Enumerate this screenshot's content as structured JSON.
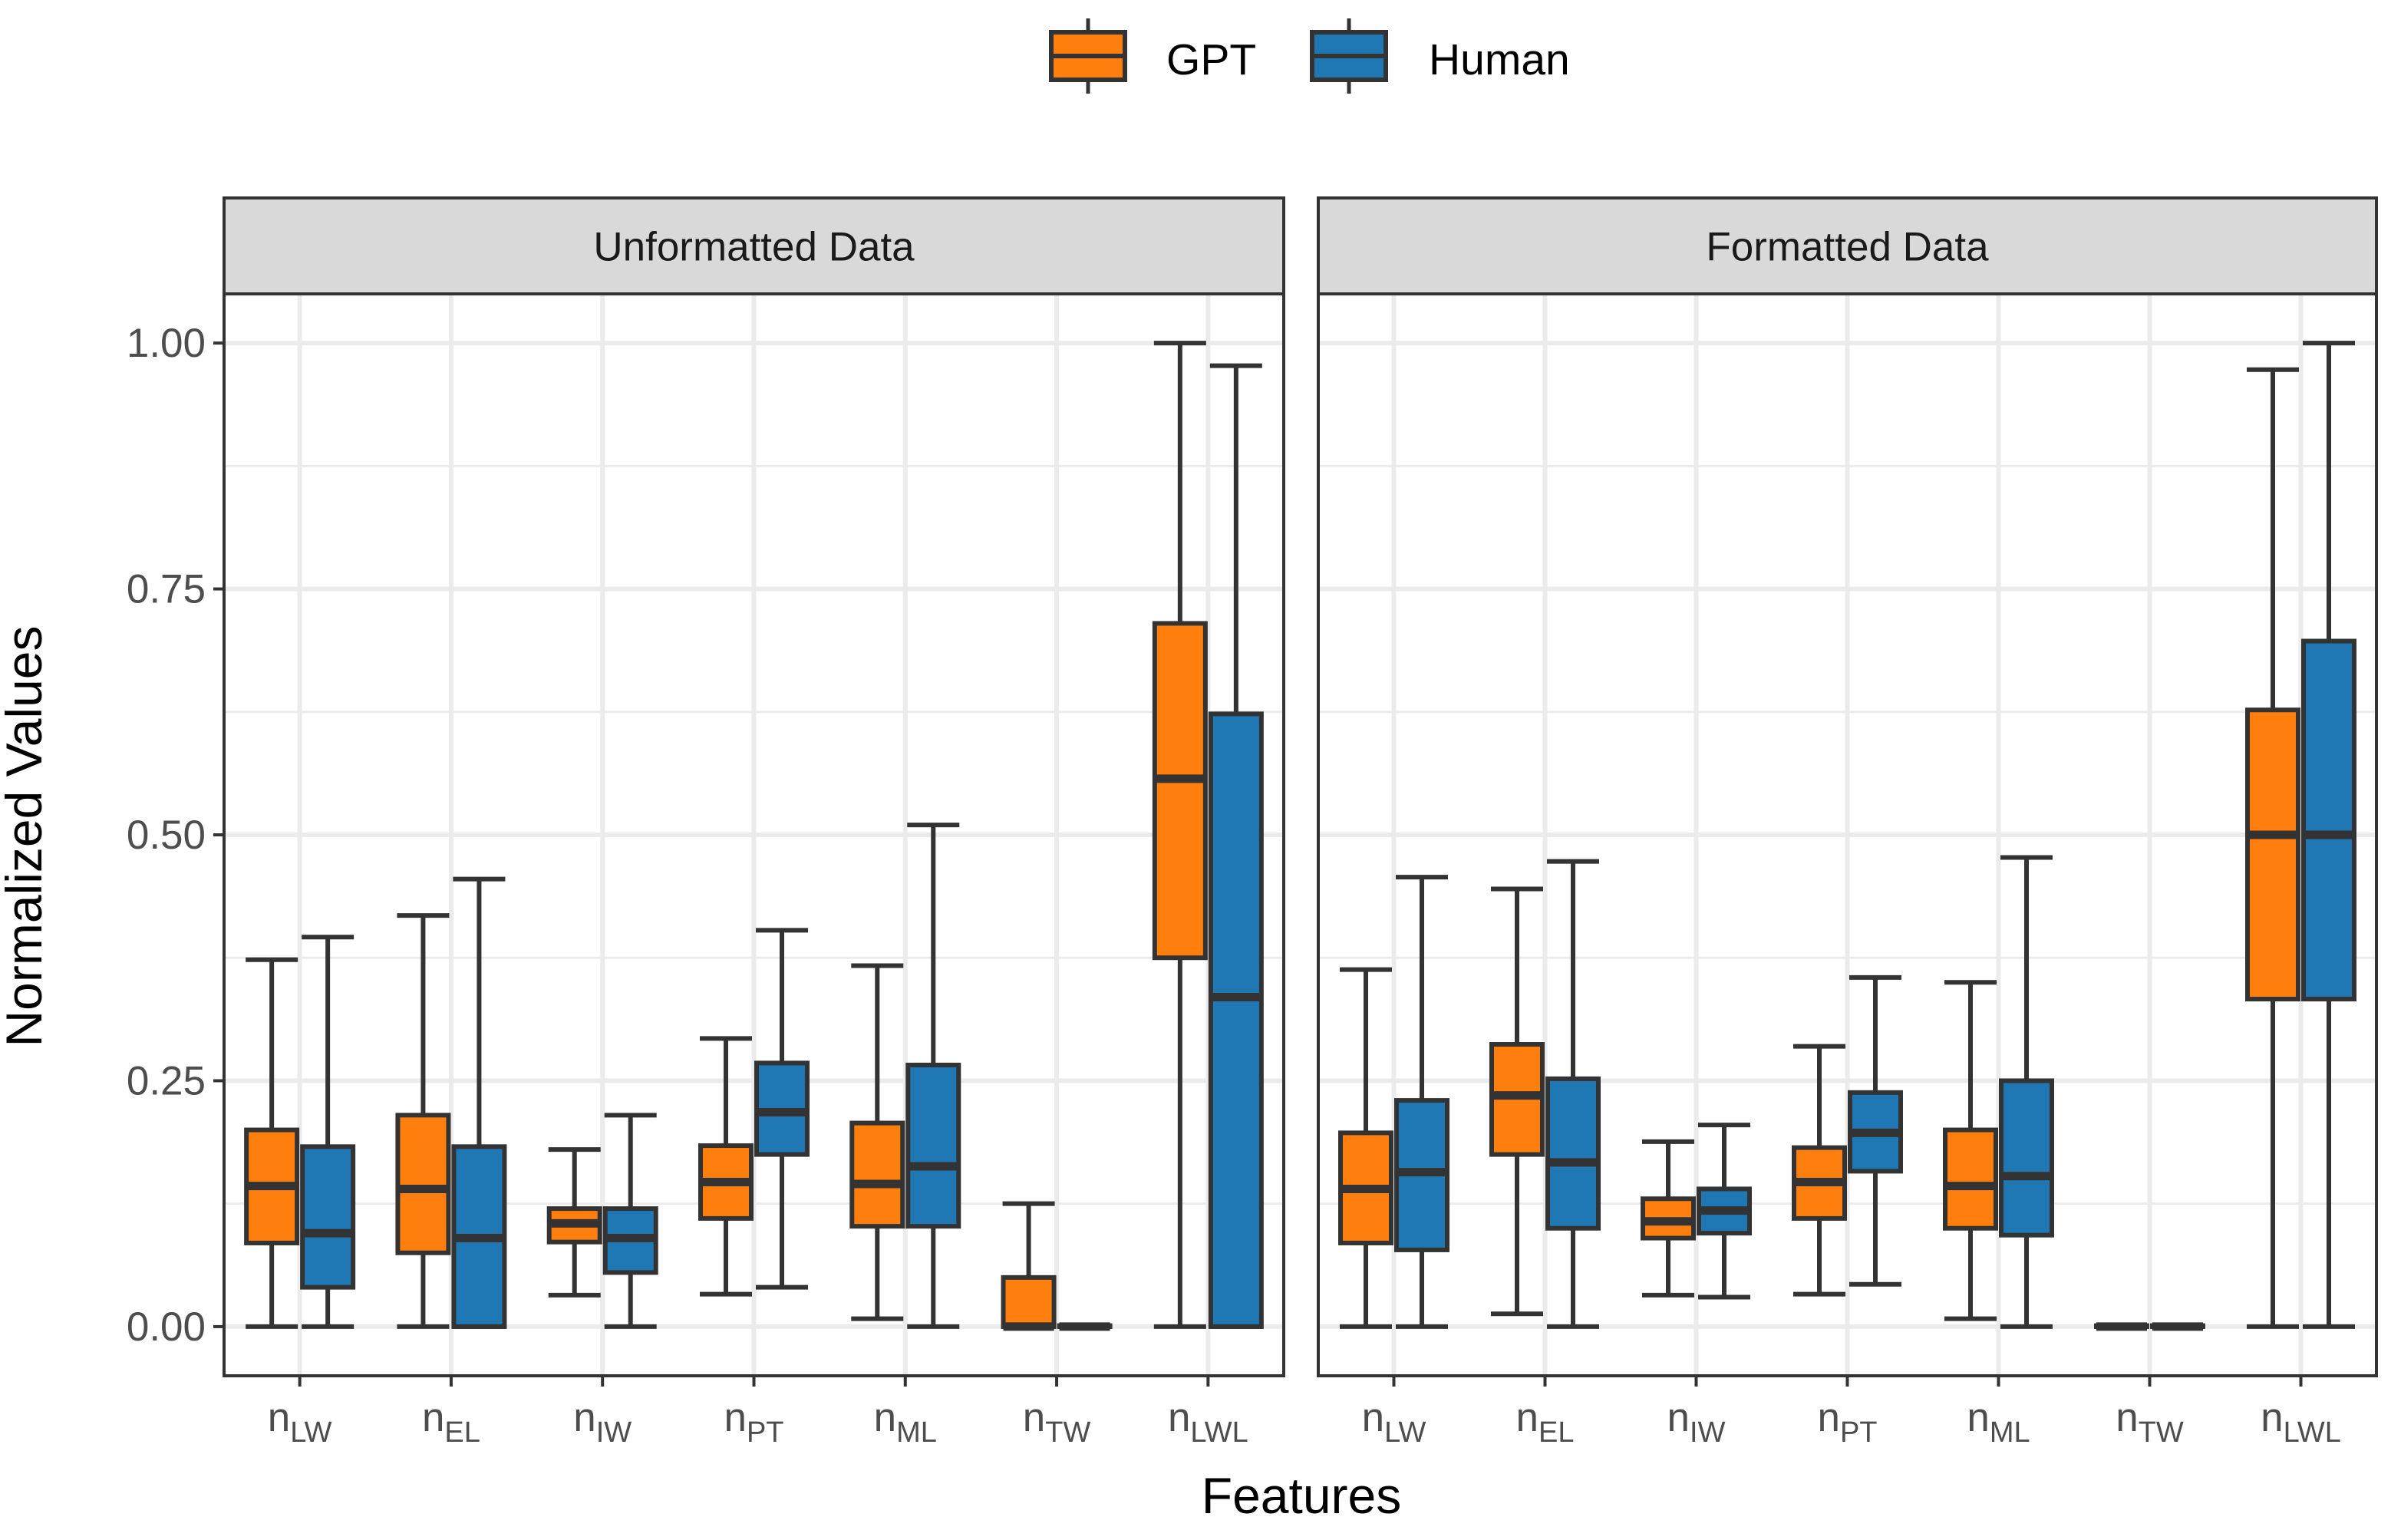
{
  "chart_data": {
    "type": "boxplot",
    "xlabel": "Features",
    "ylabel": "Normalized Values",
    "ylim": [
      -0.05,
      1.05
    ],
    "yticks": [
      0,
      0.25,
      0.5,
      0.75,
      1
    ],
    "ytick_labels": [
      "0.00",
      "0.25",
      "0.50",
      "0.75",
      "1.00"
    ],
    "legend": {
      "position": "top",
      "entries": [
        {
          "name": "GPT",
          "color": "#FF7F0E"
        },
        {
          "name": "Human",
          "color": "#1F77B4"
        }
      ]
    },
    "categories": [
      {
        "base": "n",
        "sub": "LW"
      },
      {
        "base": "n",
        "sub": "EL"
      },
      {
        "base": "n",
        "sub": "IW"
      },
      {
        "base": "n",
        "sub": "PT"
      },
      {
        "base": "n",
        "sub": "ML"
      },
      {
        "base": "n",
        "sub": "TW"
      },
      {
        "base": "n",
        "sub": "LWL"
      }
    ],
    "panels": [
      {
        "title": "Unformatted Data",
        "series": [
          {
            "name": "GPT",
            "boxes": [
              {
                "min": 0.0,
                "q1": 0.085,
                "median": 0.143,
                "q3": 0.2,
                "max": 0.373
              },
              {
                "min": 0.0,
                "q1": 0.075,
                "median": 0.14,
                "q3": 0.215,
                "max": 0.418
              },
              {
                "min": 0.032,
                "q1": 0.086,
                "median": 0.105,
                "q3": 0.12,
                "max": 0.18
              },
              {
                "min": 0.033,
                "q1": 0.11,
                "median": 0.147,
                "q3": 0.184,
                "max": 0.293
              },
              {
                "min": 0.008,
                "q1": 0.102,
                "median": 0.145,
                "q3": 0.207,
                "max": 0.367
              },
              {
                "min": 0.0,
                "q1": 0.0,
                "median": 0.0,
                "q3": 0.05,
                "max": 0.125
              },
              {
                "min": 0.0,
                "q1": 0.375,
                "median": 0.557,
                "q3": 0.715,
                "max": 1.0
              }
            ]
          },
          {
            "name": "Human",
            "boxes": [
              {
                "min": 0.0,
                "q1": 0.04,
                "median": 0.095,
                "q3": 0.183,
                "max": 0.396
              },
              {
                "min": 0.0,
                "q1": 0.0,
                "median": 0.09,
                "q3": 0.183,
                "max": 0.455
              },
              {
                "min": 0.0,
                "q1": 0.055,
                "median": 0.09,
                "q3": 0.12,
                "max": 0.215
              },
              {
                "min": 0.04,
                "q1": 0.175,
                "median": 0.218,
                "q3": 0.268,
                "max": 0.403
              },
              {
                "min": 0.0,
                "q1": 0.102,
                "median": 0.163,
                "q3": 0.266,
                "max": 0.51
              },
              {
                "min": 0.0,
                "q1": 0.0,
                "median": 0.0,
                "q3": 0.001,
                "max": 0.001
              },
              {
                "min": 0.0,
                "q1": 0.0,
                "median": 0.335,
                "q3": 0.623,
                "max": 0.977
              }
            ]
          }
        ]
      },
      {
        "title": "Formatted Data",
        "series": [
          {
            "name": "GPT",
            "boxes": [
              {
                "min": 0.0,
                "q1": 0.085,
                "median": 0.14,
                "q3": 0.197,
                "max": 0.363
              },
              {
                "min": 0.013,
                "q1": 0.175,
                "median": 0.235,
                "q3": 0.287,
                "max": 0.445
              },
              {
                "min": 0.032,
                "q1": 0.09,
                "median": 0.107,
                "q3": 0.13,
                "max": 0.188
              },
              {
                "min": 0.033,
                "q1": 0.11,
                "median": 0.147,
                "q3": 0.182,
                "max": 0.285
              },
              {
                "min": 0.008,
                "q1": 0.1,
                "median": 0.143,
                "q3": 0.2,
                "max": 0.35
              },
              {
                "min": 0.0,
                "q1": 0.0,
                "median": 0.0,
                "q3": 0.001,
                "max": 0.001
              },
              {
                "min": 0.0,
                "q1": 0.333,
                "median": 0.5,
                "q3": 0.627,
                "max": 0.973
              }
            ]
          },
          {
            "name": "Human",
            "boxes": [
              {
                "min": 0.0,
                "q1": 0.078,
                "median": 0.157,
                "q3": 0.23,
                "max": 0.457
              },
              {
                "min": 0.0,
                "q1": 0.1,
                "median": 0.167,
                "q3": 0.252,
                "max": 0.473
              },
              {
                "min": 0.03,
                "q1": 0.095,
                "median": 0.118,
                "q3": 0.14,
                "max": 0.205
              },
              {
                "min": 0.043,
                "q1": 0.158,
                "median": 0.197,
                "q3": 0.238,
                "max": 0.355
              },
              {
                "min": 0.0,
                "q1": 0.093,
                "median": 0.153,
                "q3": 0.25,
                "max": 0.477
              },
              {
                "min": 0.0,
                "q1": 0.0,
                "median": 0.0,
                "q3": 0.001,
                "max": 0.001
              },
              {
                "min": 0.0,
                "q1": 0.333,
                "median": 0.5,
                "q3": 0.697,
                "max": 1.0
              }
            ]
          }
        ]
      }
    ]
  }
}
